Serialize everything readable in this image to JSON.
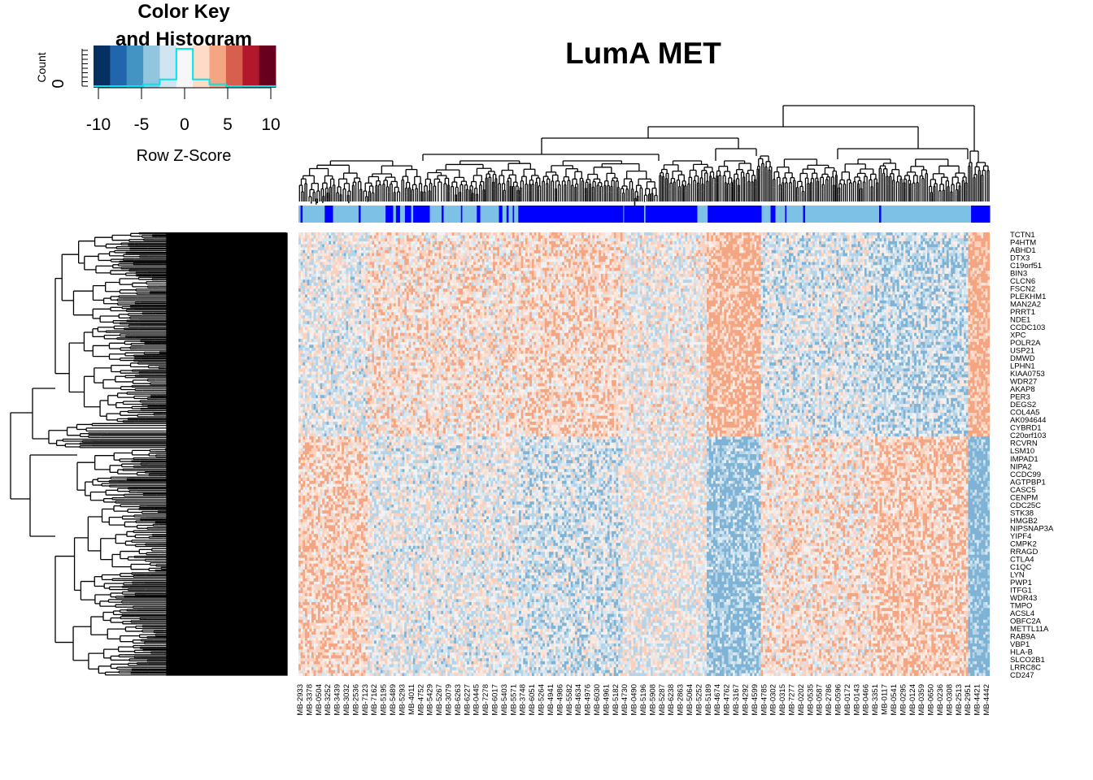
{
  "chart_data": {
    "type": "heatmap",
    "title": "LumA MET",
    "color_key": {
      "title_line1": "Color Key",
      "title_line2": "and Histogram",
      "y_label": "Count",
      "y_tick": "0",
      "x_label": "Row Z-Score",
      "x_ticks": [
        -10,
        -5,
        0,
        5,
        10
      ],
      "palette": [
        "#053061",
        "#2166ac",
        "#4393c3",
        "#92c5de",
        "#d1e5f0",
        "#f7f7f7",
        "#fddbc7",
        "#f4a582",
        "#d6604d",
        "#b2182b",
        "#67001f"
      ],
      "histogram_color": "#00e5ee",
      "histogram_counts": [
        0,
        0,
        0,
        0.05,
        0.18,
        1.0,
        0.18,
        0.05,
        0,
        0,
        0
      ]
    },
    "column_labels": [
      "MB-2933",
      "MB-3378",
      "MB-0504",
      "MB-3252",
      "MB-3439",
      "MB-3032",
      "MB-2536",
      "MB-7123",
      "MB-7162",
      "MB-5195",
      "MB-5489",
      "MB-5293",
      "MB-4011",
      "MB-4752",
      "MB-5429",
      "MB-5267",
      "MB-3079",
      "MB-6263",
      "MB-6227",
      "MB-0445",
      "MB-7278",
      "MB-6017",
      "MB-5403",
      "MB-5571",
      "MB-3748",
      "MB-6051",
      "MB-5264",
      "MB-4941",
      "MB-4986",
      "MB-5582",
      "MB-4634",
      "MB-4976",
      "MB-6030",
      "MB-4961",
      "MB-5182",
      "MB-4730",
      "MB-0490",
      "MB-5196",
      "MB-5908",
      "MB-5287",
      "MB-6238",
      "MB-2863",
      "MB-5064",
      "MB-5252",
      "MB-5189",
      "MB-4674",
      "MB-4762",
      "MB-3167",
      "MB-4292",
      "MB-4599",
      "MB-4785",
      "MB-0302",
      "MB-0315",
      "MB-7277",
      "MB-0202",
      "MB-0535",
      "MB-0587",
      "MB-2786",
      "MB-0596",
      "MB-0172",
      "MB-0143",
      "MB-0466",
      "MB-3351",
      "MB-0117",
      "MB-0541",
      "MB-0295",
      "MB-0124",
      "MB-0359",
      "MB-0650",
      "MB-0236",
      "MB-0308",
      "MB-2513",
      "MB-2951",
      "MB-4421",
      "MB-4442"
    ],
    "row_labels": [
      "TCTN1",
      "P4HTM",
      "ABHD1",
      "DTX3",
      "C19orf51",
      "BIN3",
      "CLCN6",
      "FSCN2",
      "PLEKHM1",
      "MAN2A2",
      "PRRT1",
      "NDE1",
      "CCDC103",
      "XPC",
      "POLR2A",
      "USP21",
      "DMWD",
      "LPHN1",
      "KIAA0753",
      "WDR27",
      "AKAP8",
      "PER3",
      "DEGS2",
      "COL4A5",
      "AK094644",
      "CYBRD1",
      "C20orf103",
      "RCVRN",
      "LSM10",
      "IMPAD1",
      "NIPA2",
      "CCDC99",
      "AGTPBP1",
      "CASC5",
      "CENPM",
      "CDC25C",
      "STK38",
      "HMGB2",
      "NIPSNAP3A",
      "YIPF4",
      "CMPK2",
      "RRAGD",
      "CTLA4",
      "C1QC",
      "LYN",
      "PWP1",
      "ITFG1",
      "WDR43",
      "TMPO",
      "ACSL4",
      "OBFC2A",
      "METTL11A",
      "RAB9A",
      "VBP1",
      "HLA-B",
      "SLCO2B1",
      "LRRC8C",
      "CD247"
    ],
    "annotation_colors": {
      "group_a": "#7ec1e6",
      "group_b": "#0000ff"
    },
    "annotation_blocks": [
      {
        "group": "group_a",
        "span": [
          0,
          0.003
        ]
      },
      {
        "group": "group_b",
        "span": [
          0.003,
          0.006
        ]
      },
      {
        "group": "group_a",
        "span": [
          0.006,
          0.038
        ]
      },
      {
        "group": "group_b",
        "span": [
          0.038,
          0.05
        ]
      },
      {
        "group": "group_a",
        "span": [
          0.05,
          0.087
        ]
      },
      {
        "group": "group_b",
        "span": [
          0.087,
          0.09
        ]
      },
      {
        "group": "group_a",
        "span": [
          0.09,
          0.126
        ]
      },
      {
        "group": "group_b",
        "span": [
          0.126,
          0.137
        ]
      },
      {
        "group": "group_a",
        "span": [
          0.137,
          0.141
        ]
      },
      {
        "group": "group_b",
        "span": [
          0.141,
          0.147
        ]
      },
      {
        "group": "group_a",
        "span": [
          0.147,
          0.154
        ]
      },
      {
        "group": "group_b",
        "span": [
          0.154,
          0.163
        ]
      },
      {
        "group": "group_a",
        "span": [
          0.163,
          0.166
        ]
      },
      {
        "group": "group_b",
        "span": [
          0.166,
          0.19
        ]
      },
      {
        "group": "group_a",
        "span": [
          0.19,
          0.207
        ]
      },
      {
        "group": "group_b",
        "span": [
          0.207,
          0.21
        ]
      },
      {
        "group": "group_a",
        "span": [
          0.21,
          0.235
        ]
      },
      {
        "group": "group_b",
        "span": [
          0.235,
          0.237
        ]
      },
      {
        "group": "group_a",
        "span": [
          0.237,
          0.258
        ]
      },
      {
        "group": "group_b",
        "span": [
          0.258,
          0.263
        ]
      },
      {
        "group": "group_a",
        "span": [
          0.263,
          0.29
        ]
      },
      {
        "group": "group_b",
        "span": [
          0.29,
          0.295
        ]
      },
      {
        "group": "group_a",
        "span": [
          0.295,
          0.301
        ]
      },
      {
        "group": "group_b",
        "span": [
          0.301,
          0.304
        ]
      },
      {
        "group": "group_a",
        "span": [
          0.304,
          0.31
        ]
      },
      {
        "group": "group_b",
        "span": [
          0.31,
          0.312
        ]
      },
      {
        "group": "group_a",
        "span": [
          0.312,
          0.318
        ]
      },
      {
        "group": "group_b",
        "span": [
          0.318,
          0.47
        ]
      },
      {
        "group": "group_a",
        "span": [
          0.47,
          0.471
        ]
      },
      {
        "group": "group_b",
        "span": [
          0.471,
          0.5
        ]
      },
      {
        "group": "group_a",
        "span": [
          0.5,
          0.502
        ]
      },
      {
        "group": "group_b",
        "span": [
          0.502,
          0.577
        ]
      },
      {
        "group": "group_a",
        "span": [
          0.577,
          0.592
        ]
      },
      {
        "group": "group_b",
        "span": [
          0.592,
          0.67
        ]
      },
      {
        "group": "group_a",
        "span": [
          0.67,
          0.683
        ]
      },
      {
        "group": "group_b",
        "span": [
          0.683,
          0.69
        ]
      },
      {
        "group": "group_a",
        "span": [
          0.69,
          0.704
        ]
      },
      {
        "group": "group_b",
        "span": [
          0.704,
          0.706
        ]
      },
      {
        "group": "group_a",
        "span": [
          0.706,
          0.73
        ]
      },
      {
        "group": "group_b",
        "span": [
          0.73,
          0.733
        ]
      },
      {
        "group": "group_a",
        "span": [
          0.733,
          0.84
        ]
      },
      {
        "group": "group_b",
        "span": [
          0.84,
          0.843
        ]
      },
      {
        "group": "group_a",
        "span": [
          0.843,
          0.973
        ]
      },
      {
        "group": "group_b",
        "span": [
          0.973,
          1.0
        ]
      }
    ]
  }
}
